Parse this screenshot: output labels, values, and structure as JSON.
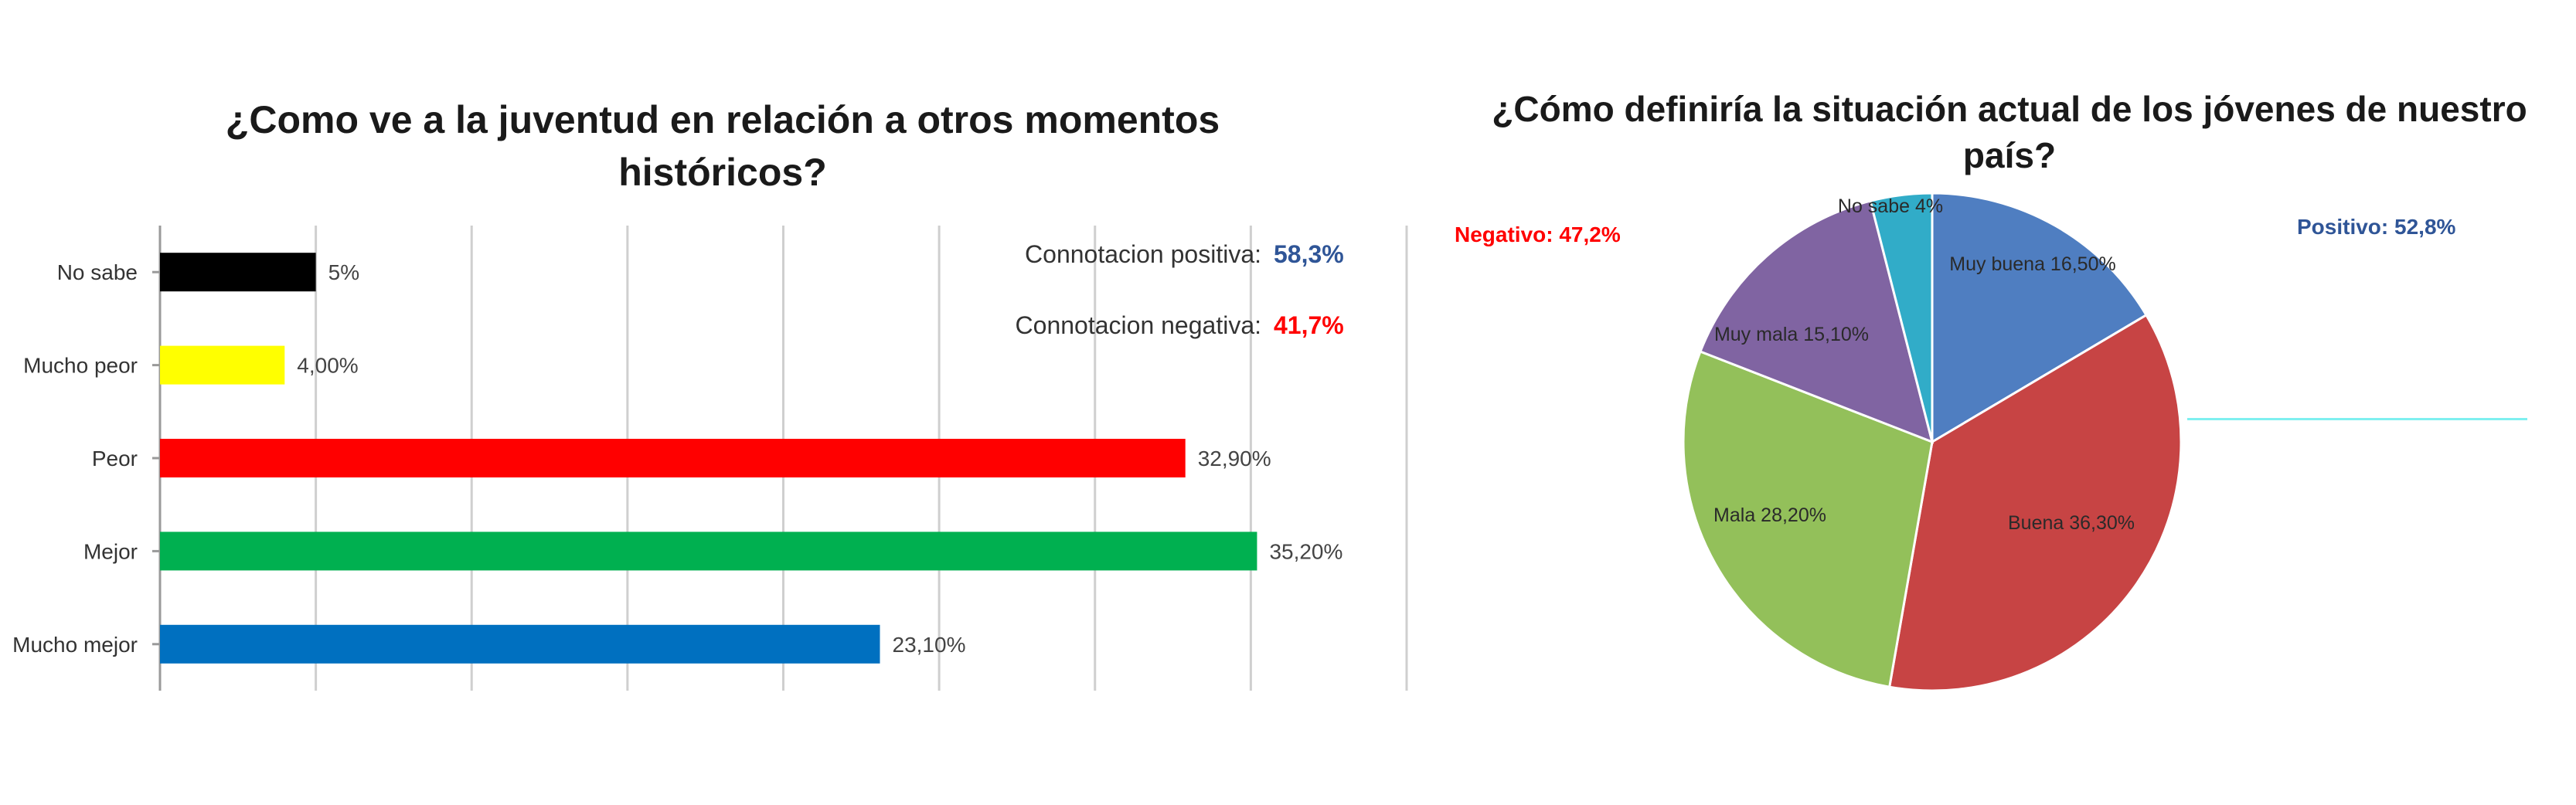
{
  "chart_data": [
    {
      "type": "bar",
      "orientation": "horizontal",
      "title_lines": [
        "¿Como ve a la juventud en relación a otros momentos",
        "históricos?"
      ],
      "categories": [
        "No sabe",
        "Mucho peor",
        "Peor",
        "Mejor",
        "Mucho mejor"
      ],
      "values": [
        5,
        4.0,
        32.9,
        35.2,
        23.1
      ],
      "value_labels": [
        "5%",
        "4,00%",
        "32,90%",
        "35,20%",
        "23,10%"
      ],
      "colors": [
        "#000000",
        "#ffff00",
        "#ff0000",
        "#00b050",
        "#0070c0"
      ],
      "xlim": [
        0,
        40
      ],
      "grid": true,
      "annotations": [
        {
          "label": "Connotacion positiva:",
          "value": "58,3%",
          "value_color": "#2f5597"
        },
        {
          "label": "Connotacion negativa:",
          "value": "41,7%",
          "value_color": "#ff0000"
        }
      ]
    },
    {
      "type": "pie",
      "title_lines": [
        "¿Cómo definiría la situación actual de los jóvenes de nuestro",
        "país?"
      ],
      "slices": [
        {
          "label": "Muy buena 16,50%",
          "value": 16.5,
          "color": "#4f7ec1"
        },
        {
          "label": "Buena 36,30%",
          "value": 36.3,
          "color": "#c74444"
        },
        {
          "label": "Mala 28,20%",
          "value": 28.2,
          "color": "#93c05a"
        },
        {
          "label": "Muy mala 15,10%",
          "value": 15.1,
          "color": "#8064a2"
        },
        {
          "label": "No sabe 4%",
          "value": 4,
          "color": "#31acc8"
        }
      ],
      "annotations": [
        {
          "text": "Negativo: 47,2%",
          "color": "#ff0000"
        },
        {
          "text": "Positivo: 52,8%",
          "color": "#2f5597"
        }
      ]
    }
  ]
}
